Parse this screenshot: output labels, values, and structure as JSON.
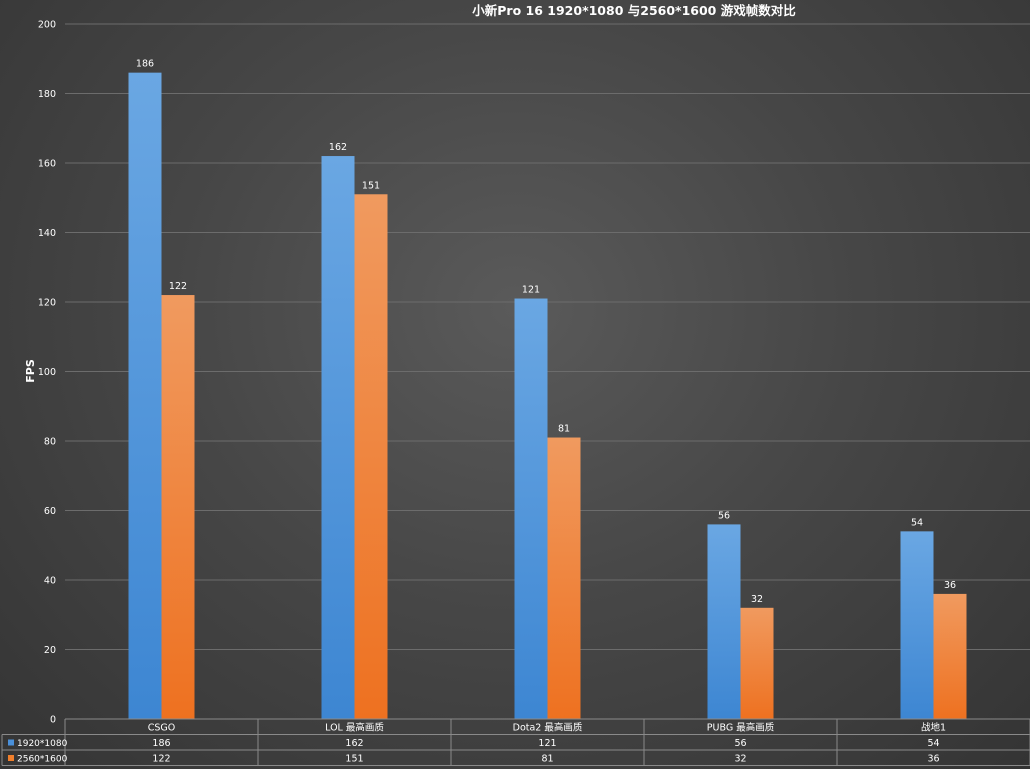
{
  "chart_data": {
    "type": "bar",
    "title": "小新Pro 16  1920*1080 与2560*1600 游戏帧数对比",
    "ylabel": "FPS",
    "xlabel": "",
    "ylim": [
      0,
      200
    ],
    "yticks": [
      0,
      20,
      40,
      60,
      80,
      100,
      120,
      140,
      160,
      180,
      200
    ],
    "grid": true,
    "legend": "data-table-bottom",
    "categories": [
      "CSGO",
      "LOL 最高画质",
      "Dota2 最高画质",
      "PUBG 最高画质",
      "战地1"
    ],
    "series": [
      {
        "name": "1920*1080",
        "values": [
          186,
          162,
          121,
          56,
          54
        ],
        "color": "#4a90d9"
      },
      {
        "name": "2560*1600",
        "values": [
          122,
          151,
          81,
          32,
          36
        ],
        "color": "#f07f2c"
      }
    ]
  }
}
